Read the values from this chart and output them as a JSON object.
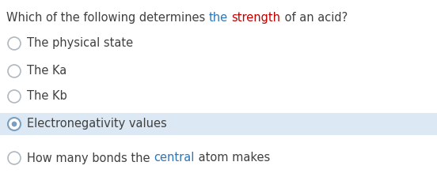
{
  "question_segments": [
    {
      "text": "Which of the following determines ",
      "color": "#404040"
    },
    {
      "text": "the",
      "color": "#2e75b6"
    },
    {
      "text": " ",
      "color": "#404040"
    },
    {
      "text": "strength",
      "color": "#c00000"
    },
    {
      "text": " of an acid?",
      "color": "#404040"
    }
  ],
  "options": [
    {
      "text": "The physical state",
      "parts": [
        {
          "text": "The physical state",
          "color": "#404040"
        }
      ]
    },
    {
      "text": "The Ka",
      "parts": [
        {
          "text": "The Ka",
          "color": "#404040"
        }
      ]
    },
    {
      "text": "The Kb",
      "parts": [
        {
          "text": "The Kb",
          "color": "#404040"
        }
      ]
    },
    {
      "text": "Electronegativity values",
      "parts": [
        {
          "text": "Electronegativity values",
          "color": "#404040"
        }
      ]
    },
    {
      "text": "How many bonds the central atom makes",
      "parts": [
        {
          "text": "How many bonds the ",
          "color": "#404040"
        },
        {
          "text": "central",
          "color": "#2e75b6"
        },
        {
          "text": " atom makes",
          "color": "#404040"
        }
      ]
    }
  ],
  "selected_index": 3,
  "selected_bg": "#dce9f5",
  "selected_radio_outer": "#7a9fc0",
  "selected_radio_inner": "#7a9fc0",
  "unselected_radio_border": "#b0b8c0",
  "bg_color": "#ffffff",
  "font_size_question": 10.5,
  "font_size_options": 10.5,
  "fig_width": 5.52,
  "fig_height": 2.43,
  "dpi": 100
}
